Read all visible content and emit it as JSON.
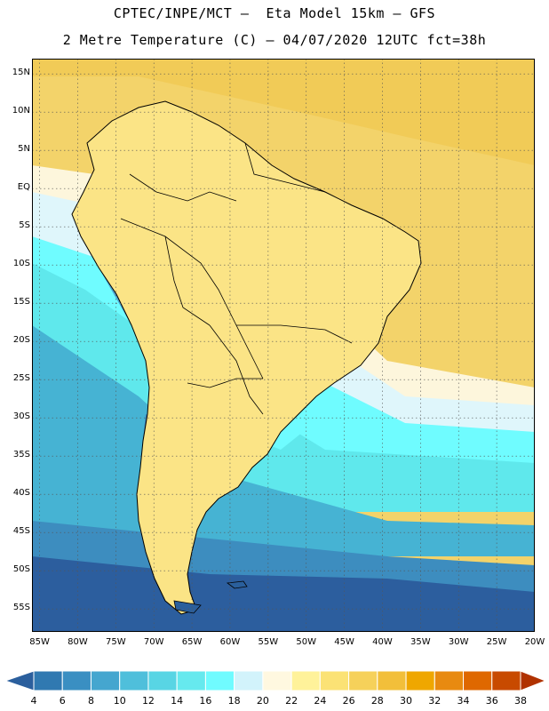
{
  "header": {
    "line1": "CPTEC/INPE/MCT –  Eta Model 15km – GFS",
    "line2": "2 Metre Temperature (C) – 04/07/2020 12UTC fct=38h"
  },
  "map": {
    "lat_range": [
      -58,
      17
    ],
    "lon_range": [
      -86,
      -20
    ],
    "lat_labels": [
      "15N",
      "10N",
      "5N",
      "EQ",
      "5S",
      "10S",
      "15S",
      "20S",
      "25S",
      "30S",
      "35S",
      "40S",
      "45S",
      "50S",
      "55S"
    ],
    "lon_labels": [
      "85W",
      "80W",
      "75W",
      "70W",
      "65W",
      "60W",
      "55W",
      "50W",
      "45W",
      "40W",
      "35W",
      "30W",
      "25W",
      "20W"
    ],
    "grid": true,
    "colors": {
      "ocean_far_south": "#2c5e9e",
      "ocean_south": "#3d8dbf",
      "ocean_mid": "#46b3d3",
      "ocean_cyan": "#5fe8ec",
      "ocean_bright": "#6ffcff",
      "ocean_pale": "#dff6fb",
      "ocean_cream": "#fdf6dc",
      "tropics": "#f3d36a",
      "tropics_warm": "#f0c040",
      "land_yellow": "#fbe486",
      "land_pale": "#fef4b0",
      "andes_dark": "#2f6ea8",
      "andes_mid": "#4ea6d2",
      "patagonia": "#3b7fb8",
      "coast": "#000000"
    }
  },
  "legend": {
    "labels": [
      "4",
      "6",
      "8",
      "10",
      "12",
      "14",
      "16",
      "18",
      "20",
      "22",
      "24",
      "26",
      "28",
      "30",
      "32",
      "34",
      "36",
      "38"
    ],
    "colors": [
      "#2b5f9d",
      "#3079b1",
      "#3a8fc2",
      "#45a6cf",
      "#4fbfdb",
      "#58d5e4",
      "#66e9ee",
      "#70fbff",
      "#d2f3fb",
      "#fff8e0",
      "#fff29a",
      "#fbe275",
      "#f6d15a",
      "#f2bf3a",
      "#efa700",
      "#e88a10",
      "#df6800",
      "#c84a00",
      "#b03200"
    ]
  }
}
